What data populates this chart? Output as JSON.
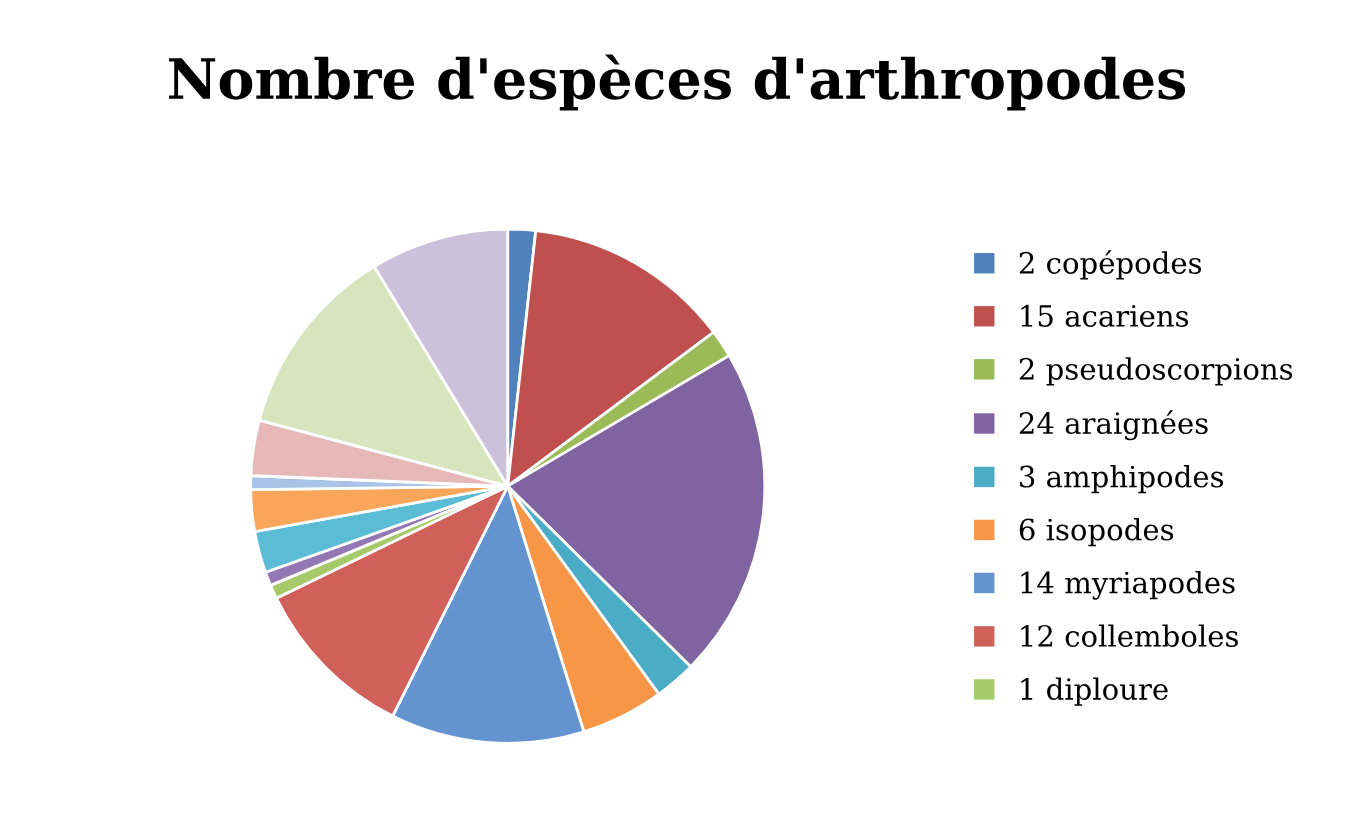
{
  "chart_data": {
    "type": "pie",
    "title": "Nombre d'espèces d'arthropodes",
    "categories": [
      "2 copépodes",
      "15 acariens",
      "2 pseudoscorpions",
      "24 araignées",
      "3 amphipodes",
      "6 isopodes",
      "14 myriapodes",
      "12 collemboles",
      "1 diploure",
      null,
      null,
      null,
      null,
      null,
      null,
      null
    ],
    "values": [
      2,
      15,
      2,
      24,
      3,
      6,
      14,
      12,
      1,
      1,
      3,
      3,
      1,
      4,
      14,
      10
    ],
    "colors": [
      "#4f81bd",
      "#c0504d",
      "#9bbb59",
      "#8064a2",
      "#4bacc6",
      "#f79646",
      "#6394cf",
      "#d0605a",
      "#a6c96a",
      "#9378b5",
      "#5bbcd6",
      "#f9a65a",
      "#a9c3e6",
      "#e6b9b8",
      "#d7e4bd",
      "#ccc1da"
    ],
    "legend": "right"
  }
}
